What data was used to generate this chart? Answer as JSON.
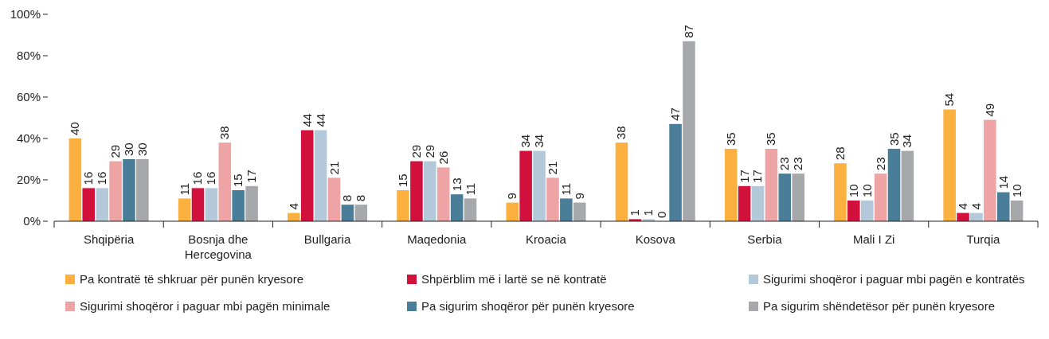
{
  "chart_data": {
    "type": "bar",
    "categories": [
      "Shqipëria",
      "Bosnja dhe Hercegovina",
      "Bullgaria",
      "Maqedonia",
      "Kroacia",
      "Kosova",
      "Serbia",
      "Mali I Zi",
      "Turqia"
    ],
    "series": [
      {
        "name": "Pa kontratë të shkruar për punën kryesore",
        "color": "#fbb040",
        "values": [
          40,
          11,
          4,
          15,
          9,
          38,
          35,
          28,
          54
        ]
      },
      {
        "name": "Shpërblim më i lartë se në kontratë",
        "color": "#d2103c",
        "values": [
          16,
          16,
          44,
          29,
          34,
          1,
          17,
          10,
          4
        ]
      },
      {
        "name": "Sigurimi shoqëror i paguar mbi pagën e kontratës",
        "color": "#b3c9d9",
        "values": [
          16,
          16,
          44,
          29,
          34,
          1,
          17,
          10,
          4
        ]
      },
      {
        "name": "Sigurimi shoqëror i paguar mbi pagën minimale",
        "color": "#eea4a4",
        "values": [
          29,
          38,
          21,
          26,
          21,
          0,
          35,
          23,
          49
        ]
      },
      {
        "name": "Pa sigurim shoqëror për punën kryesore",
        "color": "#4a7d98",
        "values": [
          30,
          15,
          8,
          13,
          11,
          47,
          23,
          35,
          14
        ]
      },
      {
        "name": "Pa sigurim shëndetësor për punën kryesore",
        "color": "#a7a8ab",
        "values": [
          30,
          17,
          8,
          11,
          9,
          87,
          23,
          34,
          10
        ]
      }
    ],
    "ylim": [
      0,
      100
    ],
    "yticks": [
      {
        "value": 0,
        "label": "0%"
      },
      {
        "value": 20,
        "label": "20%"
      },
      {
        "value": 40,
        "label": "40%"
      },
      {
        "value": 60,
        "label": "60%"
      },
      {
        "value": 80,
        "label": "80%"
      },
      {
        "value": 100,
        "label": "100%"
      }
    ],
    "data_labels": true,
    "grid": false,
    "legend": "bottom"
  }
}
